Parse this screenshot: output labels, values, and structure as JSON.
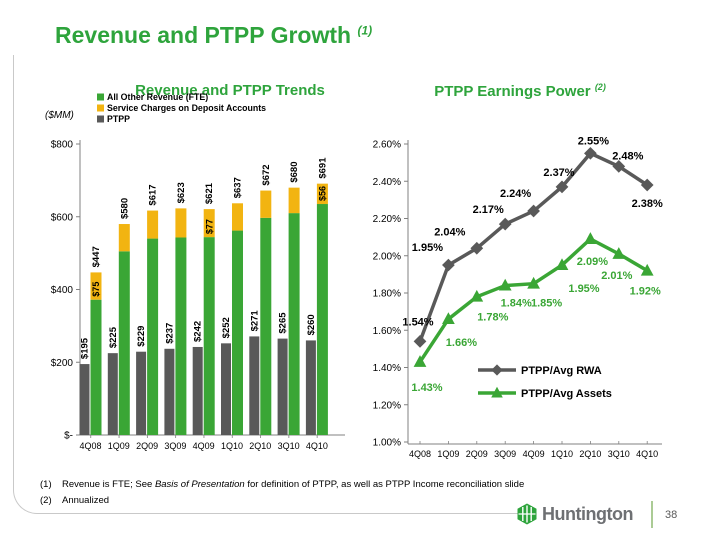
{
  "slide": {
    "title": "Revenue and PTPP Growth",
    "title_superscript": "(1)",
    "brand": "Huntington",
    "page_number": "38",
    "footnotes": [
      {
        "marker": "(1)",
        "pre": "Revenue is FTE; See ",
        "italic": "Basis of Presentation",
        "post": " for definition of PTPP, as well as PTPP Income reconciliation slide"
      },
      {
        "marker": "(2)",
        "pre": "Annualized",
        "italic": "",
        "post": ""
      }
    ]
  },
  "colors": {
    "green": "#3AA635",
    "title_green": "#2EA43C",
    "yellow": "#F2B411",
    "gray": "#595959",
    "black": "#000000",
    "axis": "#808080",
    "frame": "#C9C9C9",
    "divider": "#ABCB95"
  },
  "chart_data": [
    {
      "type": "bar",
      "title": "Revenue and PTPP Trends",
      "axis_unit_label": "($MM)",
      "categories": [
        "4Q08",
        "1Q09",
        "2Q09",
        "3Q09",
        "4Q09",
        "1Q10",
        "2Q10",
        "3Q10",
        "4Q10"
      ],
      "legend": [
        {
          "label": "All Other Revenue (FTE)",
          "color_key": "green"
        },
        {
          "label": "Service Charges on Deposit Accounts",
          "color_key": "yellow"
        },
        {
          "label": "PTPP",
          "color_key": "gray"
        }
      ],
      "series": [
        {
          "name": "PTPP",
          "color_key": "gray",
          "values": [
            195,
            225,
            229,
            237,
            242,
            252,
            271,
            265,
            260
          ],
          "labels": [
            "$195",
            "$225",
            "$229",
            "$237",
            "$242",
            "$252",
            "$271",
            "$265",
            "$260"
          ]
        },
        {
          "name": "All Other Revenue (FTE)",
          "color_key": "green",
          "values": [
            372,
            505,
            540,
            543,
            544,
            562,
            597,
            610,
            635
          ]
        },
        {
          "name": "Service Charges on Deposit Accounts",
          "color_key": "yellow",
          "values": [
            75,
            75,
            77,
            80,
            77,
            75,
            75,
            70,
            56
          ],
          "labels": [
            "$75",
            "",
            "",
            "",
            "$77",
            "",
            "",
            "",
            "$56"
          ]
        }
      ],
      "stack_totals": [
        447,
        580,
        617,
        623,
        621,
        637,
        672,
        680,
        691
      ],
      "stack_total_labels": [
        "$447",
        "$580",
        "$617",
        "$623",
        "$621",
        "$637",
        "$672",
        "$680",
        "$691"
      ],
      "ylim": [
        0,
        800
      ],
      "yticks": [
        {
          "label": "$800",
          "value": 800
        },
        {
          "label": "$600",
          "value": 600
        },
        {
          "label": "$400",
          "value": 400
        },
        {
          "label": "$200",
          "value": 200
        },
        {
          "label": "$-",
          "value": 0
        }
      ],
      "grid": false,
      "legend_position": "top-left"
    },
    {
      "type": "line",
      "title": "PTPP Earnings Power",
      "title_superscript": "(2)",
      "categories": [
        "4Q08",
        "1Q09",
        "2Q09",
        "3Q09",
        "4Q09",
        "1Q10",
        "2Q10",
        "3Q10",
        "4Q10"
      ],
      "series": [
        {
          "name": "PTPP/Avg RWA",
          "color_key": "gray",
          "marker": "diamond",
          "values": [
            1.54,
            1.95,
            2.04,
            2.17,
            2.24,
            2.37,
            2.55,
            2.48,
            2.38
          ],
          "labels": [
            "1.54%",
            "1.95%",
            "2.04%",
            "2.17%",
            "2.24%",
            "2.37%",
            "2.55%",
            "2.48%",
            "2.38%"
          ]
        },
        {
          "name": "PTPP/Avg Assets",
          "color_key": "green",
          "marker": "triangle",
          "values": [
            1.43,
            1.66,
            1.78,
            1.84,
            1.85,
            1.95,
            2.09,
            2.01,
            1.92
          ],
          "labels": [
            "1.43%",
            "1.66%",
            "1.78%",
            "1.84%",
            "1.85%",
            "1.95%",
            "2.09%",
            "2.01%",
            "1.92%"
          ]
        }
      ],
      "ylim": [
        1.0,
        2.6
      ],
      "yticks": [
        {
          "label": "2.60%",
          "value": 2.6
        },
        {
          "label": "2.40%",
          "value": 2.4
        },
        {
          "label": "2.20%",
          "value": 2.2
        },
        {
          "label": "2.00%",
          "value": 2.0
        },
        {
          "label": "1.80%",
          "value": 1.8
        },
        {
          "label": "1.60%",
          "value": 1.6
        },
        {
          "label": "1.40%",
          "value": 1.4
        },
        {
          "label": "1.20%",
          "value": 1.2
        },
        {
          "label": "1.00%",
          "value": 1.0
        }
      ],
      "grid": false,
      "legend_position": "inside-bottom"
    }
  ]
}
